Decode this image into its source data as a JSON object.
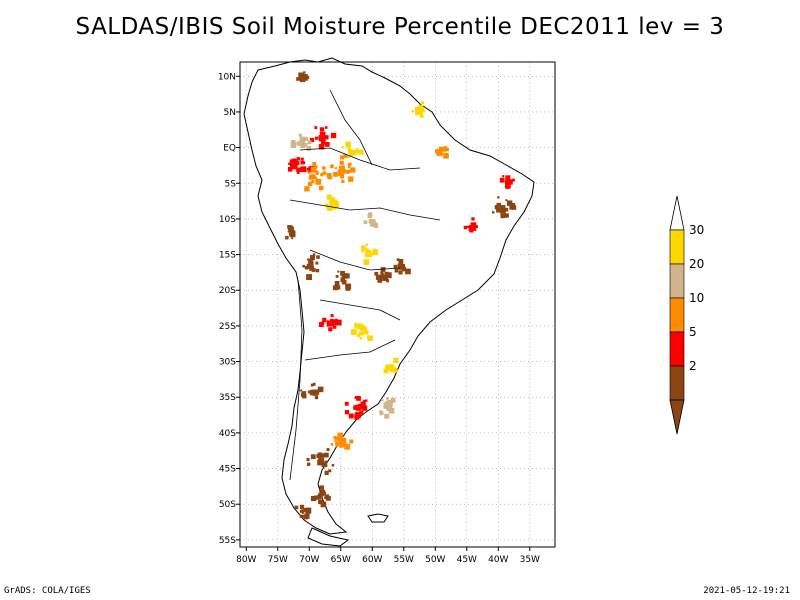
{
  "title": "SALDAS/IBIS Soil Moisture Percentile DEC2011 lev = 3",
  "footer": {
    "left": "GrADS: COLA/IGES",
    "right": "2021-05-12-19:21"
  },
  "map": {
    "region": "South America",
    "lon_range": [
      -81,
      -31
    ],
    "lat_range": [
      -56,
      12
    ],
    "grid": "dotted",
    "x_ticks": [
      "80W",
      "75W",
      "70W",
      "65W",
      "60W",
      "55W",
      "50W",
      "45W",
      "40W",
      "35W"
    ],
    "y_ticks": [
      "10N",
      "5N",
      "EQ",
      "5S",
      "10S",
      "15S",
      "20S",
      "25S",
      "30S",
      "35S",
      "40S",
      "45S",
      "50S",
      "55S"
    ]
  },
  "colorbar": {
    "levels": [
      {
        "label": "2",
        "color": "#8b4513"
      },
      {
        "label": "5",
        "color": "#ff0000"
      },
      {
        "label": "10",
        "color": "#ff8c00"
      },
      {
        "label": "20",
        "color": "#d2b48c"
      },
      {
        "label": "30",
        "color": "#ffd700"
      }
    ],
    "top_color": "#ffffff",
    "bottom_color": "#8b4513",
    "placement": "right"
  }
}
